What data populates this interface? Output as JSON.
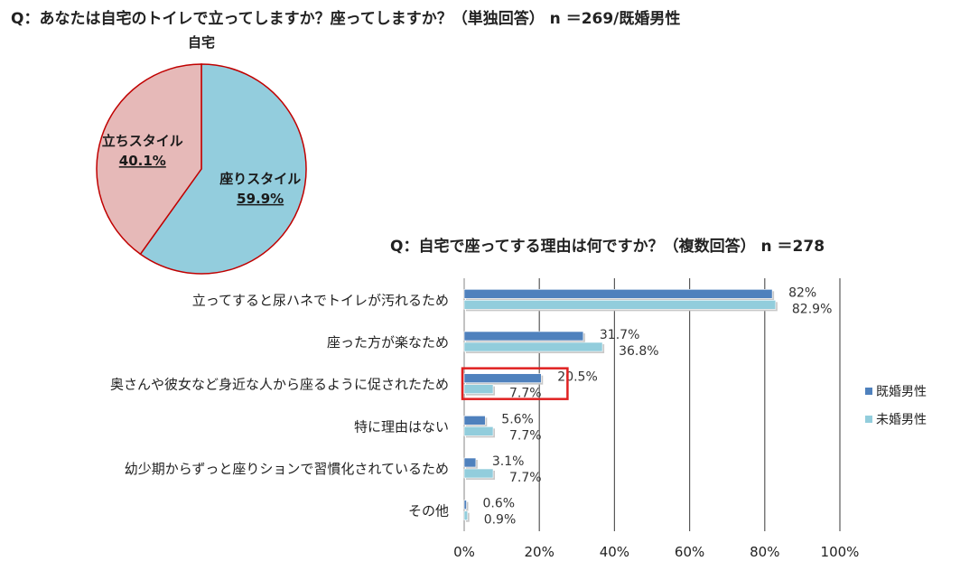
{
  "title_top": "Q：あなたは自宅のトイレで立ってしますか？座ってしますか？（単独回答） n ＝269/既婚男性",
  "title_bottom": "Q：自宅で座ってする理由は何ですか？（複数回答） n ＝278",
  "colors": {
    "married": "#4f81bd",
    "unmarried": "#92cddc",
    "pie_sit": "#93cddd",
    "pie_stand": "#e6b9b8",
    "pie_border": "#c00000",
    "highlight": "#e02020",
    "grid": "#595959"
  },
  "chart_data": [
    {
      "type": "pie",
      "title": "自宅",
      "slices": [
        {
          "label": "座りスタイル",
          "value": 59.9,
          "value_label": "59.9%"
        },
        {
          "label": "立ちスタイル",
          "value": 40.1,
          "value_label": "40.1%"
        }
      ]
    },
    {
      "type": "bar",
      "orientation": "horizontal",
      "categories": [
        "立ってすると尿ハネでトイレが汚れるため",
        "座った方が楽なため",
        "奥さんや彼女など身近な人から座るように促されたため",
        "特に理由はない",
        "幼少期からずっと座りションで習慣化されているため",
        "その他"
      ],
      "series": [
        {
          "name": "既婚男性",
          "values": [
            82,
            31.7,
            20.5,
            5.6,
            3.1,
            0.6
          ],
          "labels": [
            "82%",
            "31.7%",
            "20.5%",
            "5.6%",
            "3.1%",
            "0.6%"
          ]
        },
        {
          "name": "未婚男性",
          "values": [
            82.9,
            36.8,
            7.7,
            7.7,
            7.7,
            0.9
          ],
          "labels": [
            "82.9%",
            "36.8%",
            "7.7%",
            "7.7%",
            "7.7%",
            "0.9%"
          ]
        }
      ],
      "xlim": [
        0,
        100
      ],
      "xticks": [
        "0%",
        "20%",
        "40%",
        "60%",
        "80%",
        "100%"
      ],
      "grid": true,
      "legend": "right",
      "highlighted_category": "奥さんや彼女など身近な人から座るように促されたため"
    }
  ]
}
